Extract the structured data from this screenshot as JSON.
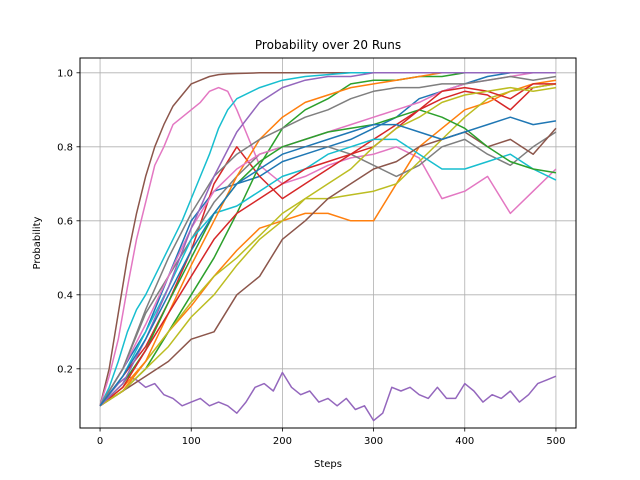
{
  "chart_data": {
    "type": "line",
    "title": "Probability over 20 Runs",
    "xlabel": "Steps",
    "ylabel": "Probability",
    "xlim": [
      -22,
      522
    ],
    "ylim": [
      0.04,
      1.04
    ],
    "grid": true,
    "xticks": [
      0,
      100,
      200,
      300,
      400,
      500
    ],
    "yticks": [
      0.2,
      0.4,
      0.6,
      0.8,
      1.0
    ],
    "xtick_labels": [
      "0",
      "100",
      "200",
      "300",
      "400",
      "500"
    ],
    "ytick_labels": [
      "0.2",
      "0.4",
      "0.6",
      "0.8",
      "1.0"
    ],
    "series": [
      {
        "color": "#8c564b",
        "x": [
          0,
          10,
          20,
          30,
          40,
          50,
          60,
          70,
          80,
          90,
          100,
          110,
          120,
          130,
          140,
          150,
          175,
          200,
          250,
          300,
          350,
          400,
          450,
          500
        ],
        "y": [
          0.1,
          0.2,
          0.35,
          0.5,
          0.62,
          0.72,
          0.8,
          0.86,
          0.91,
          0.94,
          0.97,
          0.98,
          0.99,
          0.995,
          0.997,
          0.998,
          1.0,
          1.0,
          1.0,
          1.0,
          1.0,
          1.0,
          1.0,
          1.0
        ]
      },
      {
        "color": "#e377c2",
        "x": [
          0,
          10,
          20,
          30,
          40,
          50,
          60,
          70,
          80,
          90,
          100,
          110,
          120,
          130,
          140,
          150,
          175,
          200,
          225,
          250,
          275,
          300,
          325,
          350,
          375,
          400,
          425,
          450,
          475,
          500
        ],
        "y": [
          0.1,
          0.18,
          0.28,
          0.42,
          0.55,
          0.65,
          0.75,
          0.8,
          0.86,
          0.88,
          0.9,
          0.92,
          0.95,
          0.96,
          0.95,
          0.9,
          0.75,
          0.7,
          0.72,
          0.75,
          0.77,
          0.78,
          0.8,
          0.77,
          0.66,
          0.68,
          0.72,
          0.62,
          0.68,
          0.74
        ]
      },
      {
        "color": "#17becf",
        "x": [
          0,
          10,
          20,
          30,
          40,
          50,
          60,
          70,
          80,
          90,
          100,
          110,
          120,
          130,
          140,
          150,
          175,
          200,
          225,
          250,
          275,
          300,
          325,
          350,
          375,
          400,
          425,
          450,
          475,
          500
        ],
        "y": [
          0.1,
          0.15,
          0.22,
          0.3,
          0.36,
          0.4,
          0.45,
          0.5,
          0.55,
          0.6,
          0.66,
          0.72,
          0.78,
          0.85,
          0.9,
          0.93,
          0.96,
          0.98,
          0.99,
          0.995,
          1.0,
          1.0,
          1.0,
          1.0,
          1.0,
          1.0,
          1.0,
          1.0,
          1.0,
          1.0
        ]
      },
      {
        "color": "#1f77b4",
        "x": [
          0,
          25,
          50,
          75,
          100,
          125,
          150,
          175,
          200,
          225,
          250,
          275,
          300,
          325,
          350,
          375,
          400,
          425,
          450,
          475,
          500
        ],
        "y": [
          0.1,
          0.2,
          0.3,
          0.45,
          0.6,
          0.68,
          0.7,
          0.72,
          0.76,
          0.78,
          0.8,
          0.82,
          0.85,
          0.88,
          0.93,
          0.95,
          0.97,
          0.99,
          1.0,
          1.0,
          1.0
        ]
      },
      {
        "color": "#9467bd",
        "x": [
          0,
          10,
          20,
          30,
          40,
          50,
          60,
          70,
          80,
          90,
          100,
          110,
          120,
          130,
          140,
          150,
          160,
          170,
          180,
          190,
          200,
          210,
          220,
          230,
          240,
          250,
          260,
          270,
          280,
          290,
          300,
          310,
          320,
          330,
          340,
          350,
          360,
          370,
          380,
          390,
          400,
          410,
          420,
          430,
          440,
          450,
          460,
          470,
          480,
          490,
          500
        ],
        "y": [
          0.1,
          0.13,
          0.16,
          0.18,
          0.17,
          0.15,
          0.16,
          0.13,
          0.12,
          0.1,
          0.11,
          0.12,
          0.1,
          0.11,
          0.1,
          0.08,
          0.11,
          0.15,
          0.16,
          0.14,
          0.19,
          0.15,
          0.13,
          0.14,
          0.11,
          0.12,
          0.1,
          0.12,
          0.09,
          0.1,
          0.06,
          0.08,
          0.15,
          0.14,
          0.15,
          0.13,
          0.12,
          0.15,
          0.12,
          0.12,
          0.16,
          0.14,
          0.11,
          0.13,
          0.12,
          0.14,
          0.11,
          0.13,
          0.16,
          0.17,
          0.18
        ]
      },
      {
        "color": "#d62728",
        "x": [
          0,
          25,
          50,
          75,
          100,
          125,
          150,
          175,
          200,
          225,
          250,
          275,
          300,
          325,
          350,
          375,
          400,
          425,
          450,
          475,
          500
        ],
        "y": [
          0.1,
          0.18,
          0.26,
          0.38,
          0.52,
          0.7,
          0.8,
          0.72,
          0.66,
          0.7,
          0.74,
          0.78,
          0.82,
          0.86,
          0.9,
          0.93,
          0.95,
          0.94,
          0.9,
          0.96,
          0.97
        ]
      },
      {
        "color": "#2ca02c",
        "x": [
          0,
          25,
          50,
          75,
          100,
          125,
          150,
          175,
          200,
          225,
          250,
          275,
          300,
          325,
          350,
          375,
          400,
          425,
          450,
          475,
          500
        ],
        "y": [
          0.1,
          0.14,
          0.2,
          0.3,
          0.4,
          0.5,
          0.62,
          0.75,
          0.85,
          0.9,
          0.93,
          0.97,
          0.98,
          0.98,
          0.99,
          0.99,
          1.0,
          1.0,
          1.0,
          1.0,
          1.0
        ]
      },
      {
        "color": "#ff7f0e",
        "x": [
          0,
          25,
          50,
          75,
          100,
          125,
          150,
          175,
          200,
          225,
          250,
          275,
          300,
          325,
          350,
          375,
          400,
          425,
          450,
          475,
          500
        ],
        "y": [
          0.1,
          0.15,
          0.22,
          0.3,
          0.37,
          0.45,
          0.52,
          0.58,
          0.6,
          0.62,
          0.62,
          0.6,
          0.6,
          0.7,
          0.8,
          0.85,
          0.9,
          0.92,
          0.95,
          0.97,
          0.98
        ]
      },
      {
        "color": "#7f7f7f",
        "x": [
          0,
          25,
          50,
          75,
          100,
          125,
          150,
          175,
          200,
          225,
          250,
          275,
          300,
          325,
          350,
          375,
          400,
          425,
          450,
          475,
          500
        ],
        "y": [
          0.1,
          0.2,
          0.35,
          0.45,
          0.55,
          0.65,
          0.72,
          0.78,
          0.8,
          0.8,
          0.8,
          0.78,
          0.75,
          0.72,
          0.75,
          0.8,
          0.82,
          0.78,
          0.75,
          0.8,
          0.84
        ]
      },
      {
        "color": "#bcbd22",
        "x": [
          0,
          25,
          50,
          75,
          100,
          125,
          150,
          175,
          200,
          225,
          250,
          275,
          300,
          325,
          350,
          375,
          400,
          425,
          450,
          475,
          500
        ],
        "y": [
          0.1,
          0.14,
          0.22,
          0.3,
          0.38,
          0.45,
          0.5,
          0.56,
          0.62,
          0.66,
          0.66,
          0.67,
          0.68,
          0.7,
          0.76,
          0.82,
          0.88,
          0.93,
          0.95,
          0.96,
          0.97
        ]
      },
      {
        "color": "#17becf",
        "x": [
          0,
          25,
          50,
          75,
          100,
          125,
          150,
          175,
          200,
          225,
          250,
          275,
          300,
          325,
          350,
          375,
          400,
          425,
          450,
          475,
          500
        ],
        "y": [
          0.1,
          0.18,
          0.3,
          0.42,
          0.55,
          0.62,
          0.64,
          0.68,
          0.72,
          0.74,
          0.78,
          0.8,
          0.82,
          0.82,
          0.78,
          0.74,
          0.74,
          0.76,
          0.78,
          0.74,
          0.71
        ]
      },
      {
        "color": "#ff7f0e",
        "x": [
          0,
          25,
          50,
          75,
          100,
          125,
          150,
          175,
          200,
          225,
          250,
          275,
          300,
          325,
          350,
          375,
          400,
          425,
          450,
          475,
          500
        ],
        "y": [
          0.1,
          0.14,
          0.22,
          0.35,
          0.48,
          0.6,
          0.72,
          0.82,
          0.88,
          0.92,
          0.94,
          0.96,
          0.97,
          0.98,
          0.99,
          1.0,
          1.0,
          1.0,
          1.0,
          1.0,
          1.0
        ]
      },
      {
        "color": "#8c564b",
        "x": [
          0,
          25,
          50,
          75,
          100,
          125,
          150,
          175,
          200,
          225,
          250,
          275,
          300,
          325,
          350,
          375,
          400,
          425,
          450,
          475,
          500
        ],
        "y": [
          0.1,
          0.14,
          0.18,
          0.22,
          0.28,
          0.3,
          0.4,
          0.45,
          0.55,
          0.6,
          0.66,
          0.7,
          0.74,
          0.76,
          0.8,
          0.82,
          0.84,
          0.8,
          0.82,
          0.78,
          0.85
        ]
      },
      {
        "color": "#e377c2",
        "x": [
          0,
          25,
          50,
          75,
          100,
          125,
          150,
          175,
          200,
          225,
          250,
          275,
          300,
          325,
          350,
          375,
          400,
          425,
          450,
          475,
          500
        ],
        "y": [
          0.1,
          0.2,
          0.32,
          0.45,
          0.58,
          0.68,
          0.74,
          0.78,
          0.8,
          0.82,
          0.84,
          0.86,
          0.88,
          0.9,
          0.92,
          0.95,
          0.97,
          0.98,
          0.99,
          1.0,
          1.0
        ]
      },
      {
        "color": "#2ca02c",
        "x": [
          0,
          25,
          50,
          75,
          100,
          125,
          150,
          175,
          200,
          225,
          250,
          275,
          300,
          325,
          350,
          375,
          400,
          425,
          450,
          475,
          500
        ],
        "y": [
          0.1,
          0.16,
          0.25,
          0.38,
          0.5,
          0.62,
          0.7,
          0.76,
          0.8,
          0.82,
          0.84,
          0.85,
          0.86,
          0.88,
          0.9,
          0.88,
          0.85,
          0.8,
          0.76,
          0.74,
          0.73
        ]
      },
      {
        "color": "#d62728",
        "x": [
          0,
          25,
          50,
          75,
          100,
          125,
          150,
          175,
          200,
          225,
          250,
          275,
          300,
          325,
          350,
          375,
          400,
          425,
          450,
          475,
          500
        ],
        "y": [
          0.1,
          0.15,
          0.25,
          0.35,
          0.45,
          0.55,
          0.62,
          0.66,
          0.7,
          0.74,
          0.76,
          0.78,
          0.8,
          0.85,
          0.9,
          0.95,
          0.96,
          0.95,
          0.93,
          0.97,
          0.97
        ]
      },
      {
        "color": "#bcbd22",
        "x": [
          0,
          25,
          50,
          75,
          100,
          125,
          150,
          175,
          200,
          225,
          250,
          275,
          300,
          325,
          350,
          375,
          400,
          425,
          450,
          475,
          500
        ],
        "y": [
          0.1,
          0.14,
          0.2,
          0.26,
          0.34,
          0.4,
          0.48,
          0.55,
          0.6,
          0.66,
          0.7,
          0.74,
          0.8,
          0.85,
          0.88,
          0.92,
          0.94,
          0.95,
          0.96,
          0.95,
          0.96
        ]
      },
      {
        "color": "#7f7f7f",
        "x": [
          0,
          25,
          50,
          75,
          100,
          125,
          150,
          175,
          200,
          225,
          250,
          275,
          300,
          325,
          350,
          375,
          400,
          425,
          450,
          475,
          500
        ],
        "y": [
          0.1,
          0.2,
          0.36,
          0.5,
          0.62,
          0.72,
          0.78,
          0.82,
          0.85,
          0.88,
          0.9,
          0.93,
          0.95,
          0.96,
          0.96,
          0.97,
          0.97,
          0.98,
          0.99,
          0.98,
          0.99
        ]
      },
      {
        "color": "#9467bd",
        "x": [
          0,
          25,
          50,
          75,
          100,
          125,
          150,
          175,
          200,
          225,
          250,
          275,
          300,
          325,
          350,
          375,
          400,
          425,
          450,
          475,
          500
        ],
        "y": [
          0.1,
          0.16,
          0.28,
          0.42,
          0.58,
          0.72,
          0.84,
          0.92,
          0.96,
          0.98,
          0.99,
          0.99,
          1.0,
          1.0,
          1.0,
          1.0,
          1.0,
          1.0,
          1.0,
          1.0,
          1.0
        ]
      },
      {
        "color": "#1f77b4",
        "x": [
          0,
          25,
          50,
          75,
          100,
          125,
          150,
          175,
          200,
          225,
          250,
          275,
          300,
          325,
          350,
          375,
          400,
          425,
          450,
          475,
          500
        ],
        "y": [
          0.1,
          0.18,
          0.28,
          0.4,
          0.52,
          0.62,
          0.7,
          0.74,
          0.78,
          0.8,
          0.82,
          0.84,
          0.86,
          0.86,
          0.84,
          0.82,
          0.84,
          0.86,
          0.88,
          0.86,
          0.87
        ]
      }
    ]
  }
}
